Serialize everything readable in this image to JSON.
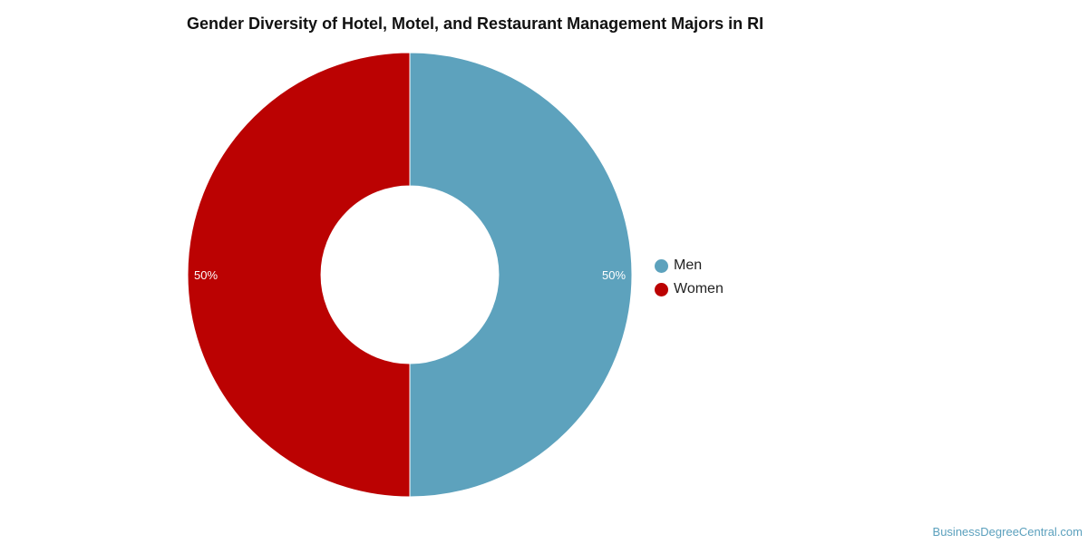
{
  "chart_data": {
    "type": "pie",
    "title": "Gender Diversity of Hotel, Motel, and Restaurant Management Majors in RI",
    "donut": true,
    "slices": [
      {
        "label": "Men",
        "value": 50,
        "display": "50%",
        "color": "#5da2bd"
      },
      {
        "label": "Women",
        "value": 50,
        "display": "50%",
        "color": "#bb0202"
      }
    ],
    "legend_position": "right"
  },
  "watermark": "BusinessDegreeCentral.com"
}
